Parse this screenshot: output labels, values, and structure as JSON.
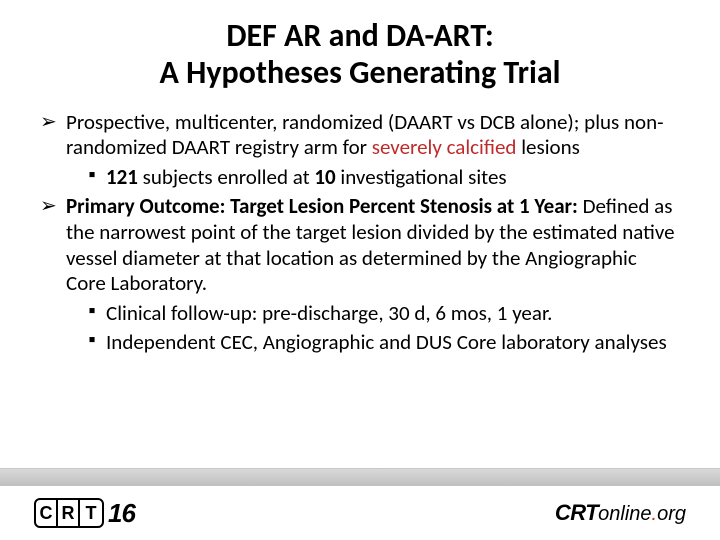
{
  "title_line1": "DEF AR and DA-ART:",
  "title_line2": "A Hypotheses Generating Trial",
  "bullets": {
    "b1_pre": "Prospective, multicenter, randomized (DAART vs DCB alone); plus non-randomized DAART registry arm for ",
    "b1_hl": "severely calcified",
    "b1_post": " lesions",
    "b1a_pre": "",
    "b1a_b1": "121",
    "b1a_mid": " subjects enrolled at ",
    "b1a_b2": "10",
    "b1a_post": " investigational sites",
    "b2_b": "Primary Outcome: Target Lesion Percent Stenosis at 1 Year:",
    "b2_rest": " Defined as the narrowest point of the target lesion divided by the estimated native vessel diameter at that location as determined by the Angiographic Core Laboratory.",
    "b2a": "Clinical follow-up: pre-discharge, 30 d, 6 mos, 1 year.",
    "b2b": "Independent CEC, Angiographic and DUS Core laboratory analyses"
  },
  "markers": {
    "l1": "➢",
    "l2": "▪"
  },
  "footer": {
    "crt": {
      "c": "C",
      "r": "R",
      "t": "T",
      "y": "16"
    },
    "online": {
      "crt": "CRT",
      "online": "online",
      "dot": ".",
      "org": "org"
    }
  },
  "colors": {
    "highlight": "#bf2a2a",
    "footer_bar_top": "#d9d9d9",
    "footer_bar_bottom": "#bfbfbf"
  }
}
